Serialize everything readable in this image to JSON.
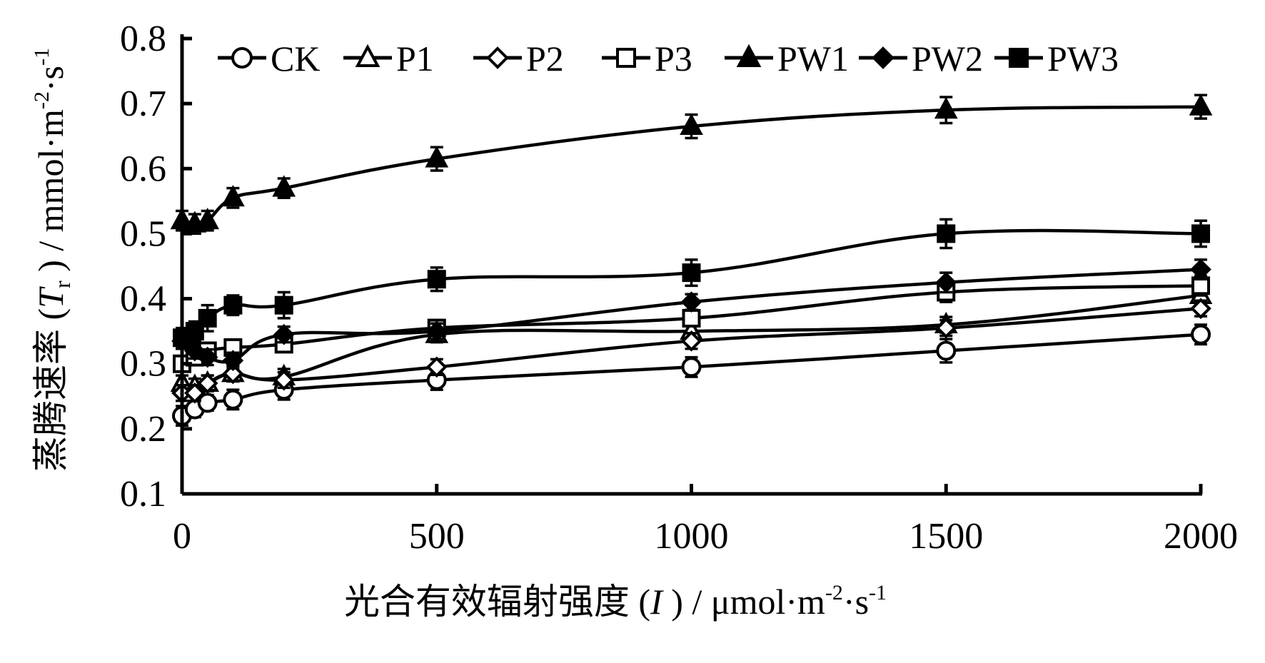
{
  "chart_data": {
    "type": "line",
    "x": [
      0,
      25,
      50,
      100,
      200,
      500,
      1000,
      1500,
      2000
    ],
    "xlim": [
      0,
      2000
    ],
    "xticks": [
      0,
      500,
      1000,
      1500,
      2000
    ],
    "ylim": [
      0.1,
      0.8
    ],
    "yticks": [
      0.1,
      0.2,
      0.3,
      0.4,
      0.5,
      0.6,
      0.7,
      0.8
    ],
    "xlabel": {
      "prefix": "光合有效辐射强度 (",
      "symbol": "I",
      "suffix": " ) / μmol·m",
      "sup1": "-2",
      "mid": "·s",
      "sup2": "-1"
    },
    "ylabel": {
      "prefix": "蒸腾速率 (",
      "symbol": "T",
      "sub": "r",
      "suffix": " ) / mmol·m",
      "sup1": "-2",
      "mid": "·s",
      "sup2": "-1"
    },
    "legend_position": "top",
    "grid": false,
    "series": [
      {
        "name": "CK",
        "marker": "circle-open",
        "values": [
          0.22,
          0.23,
          0.24,
          0.245,
          0.26,
          0.275,
          0.295,
          0.32,
          0.345
        ],
        "errors": [
          0.015,
          0.012,
          0.012,
          0.015,
          0.015,
          0.015,
          0.015,
          0.018,
          0.015
        ]
      },
      {
        "name": "P1",
        "marker": "triangle-open",
        "values": [
          0.27,
          0.265,
          0.27,
          0.285,
          0.28,
          0.345,
          0.35,
          0.36,
          0.405
        ],
        "errors": [
          0.012,
          0.012,
          0.012,
          0.012,
          0.012,
          0.012,
          0.012,
          0.012,
          0.012
        ]
      },
      {
        "name": "P2",
        "marker": "diamond-open",
        "values": [
          0.255,
          0.255,
          0.27,
          0.285,
          0.275,
          0.295,
          0.335,
          0.355,
          0.385
        ],
        "errors": [
          0.012,
          0.012,
          0.012,
          0.012,
          0.012,
          0.012,
          0.012,
          0.012,
          0.012
        ]
      },
      {
        "name": "P3",
        "marker": "square-open",
        "values": [
          0.3,
          0.31,
          0.32,
          0.325,
          0.33,
          0.355,
          0.37,
          0.41,
          0.42
        ],
        "errors": [
          0.012,
          0.012,
          0.012,
          0.012,
          0.012,
          0.012,
          0.012,
          0.015,
          0.015
        ]
      },
      {
        "name": "PW1",
        "marker": "triangle-filled",
        "values": [
          0.52,
          0.515,
          0.52,
          0.555,
          0.57,
          0.615,
          0.665,
          0.69,
          0.695
        ],
        "errors": [
          0.015,
          0.015,
          0.015,
          0.015,
          0.015,
          0.018,
          0.018,
          0.02,
          0.018
        ]
      },
      {
        "name": "PW2",
        "marker": "diamond-filled",
        "values": [
          0.335,
          0.32,
          0.31,
          0.305,
          0.345,
          0.35,
          0.395,
          0.425,
          0.445
        ],
        "errors": [
          0.012,
          0.012,
          0.012,
          0.012,
          0.012,
          0.012,
          0.012,
          0.015,
          0.015
        ]
      },
      {
        "name": "PW3",
        "marker": "square-filled",
        "values": [
          0.34,
          0.35,
          0.37,
          0.39,
          0.39,
          0.43,
          0.44,
          0.5,
          0.5
        ],
        "errors": [
          0.015,
          0.015,
          0.02,
          0.015,
          0.02,
          0.018,
          0.02,
          0.022,
          0.02
        ]
      }
    ]
  }
}
